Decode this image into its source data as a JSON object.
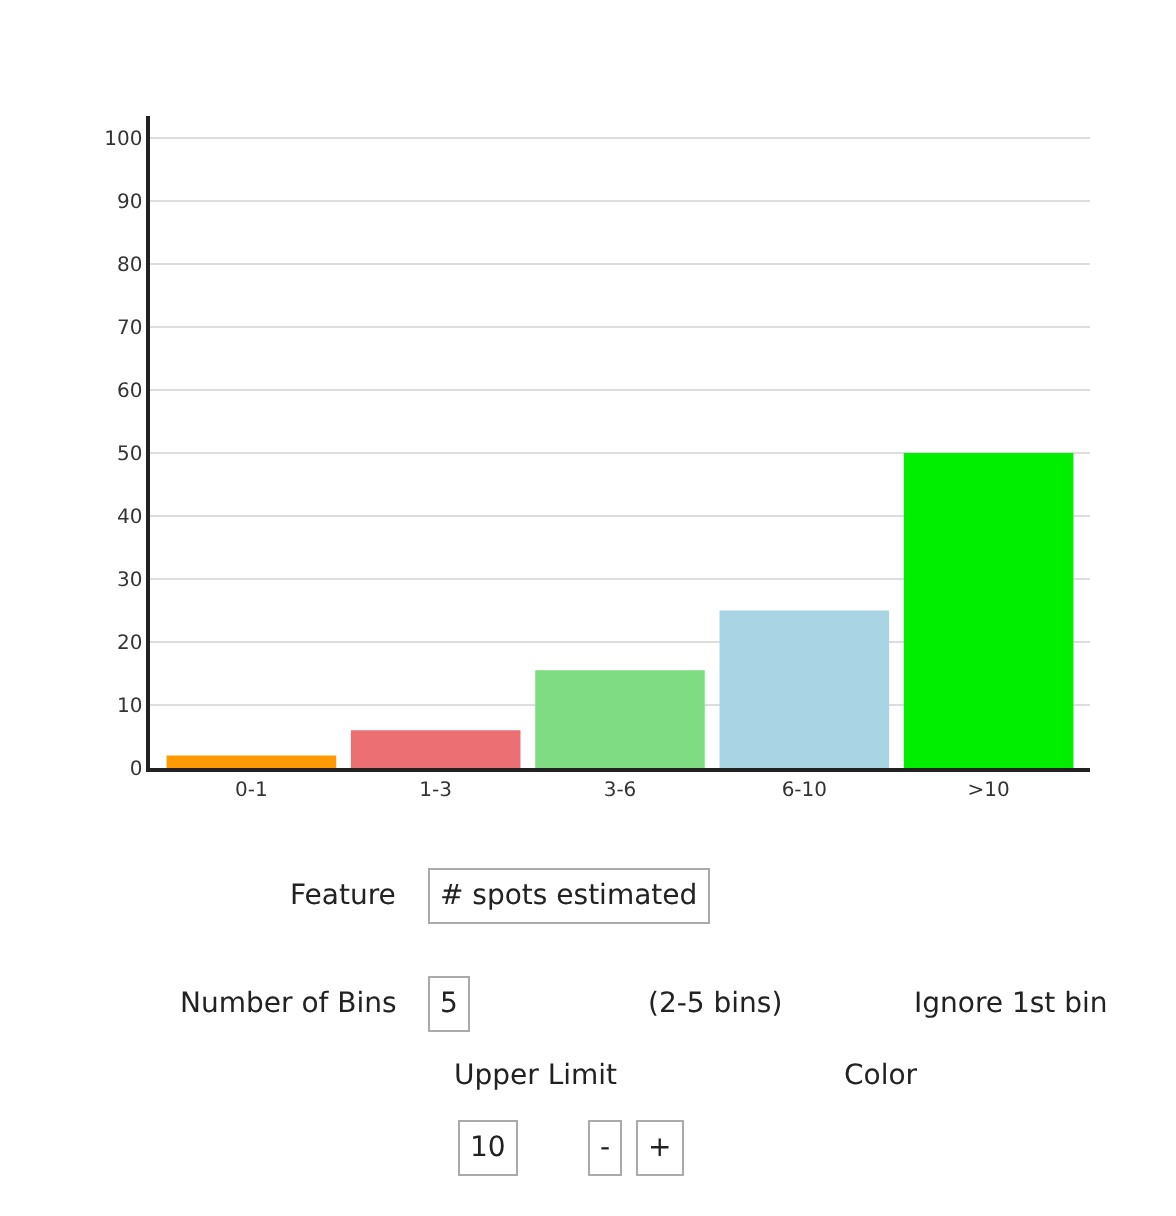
{
  "chart_data": {
    "type": "bar",
    "categories": [
      "0-1",
      "1-3",
      "3-6",
      "6-10",
      ">10"
    ],
    "values": [
      2,
      6,
      15.5,
      25,
      50
    ],
    "colors": [
      "#ff9900",
      "#ec6f73",
      "#7fdc83",
      "#a9d4e4",
      "#00ee00"
    ],
    "ylim": [
      0,
      103.5
    ],
    "yticks": [
      0,
      10,
      20,
      30,
      40,
      50,
      60,
      70,
      80,
      90,
      100
    ],
    "grid": "y",
    "legend": false,
    "annotations": [
      "Feature",
      "# spots estimated",
      "Number of Bins",
      "5",
      "(2-5 bins)",
      "Ignore 1st bin",
      "Upper Limit",
      "Color",
      "10",
      "-",
      "+"
    ]
  }
}
